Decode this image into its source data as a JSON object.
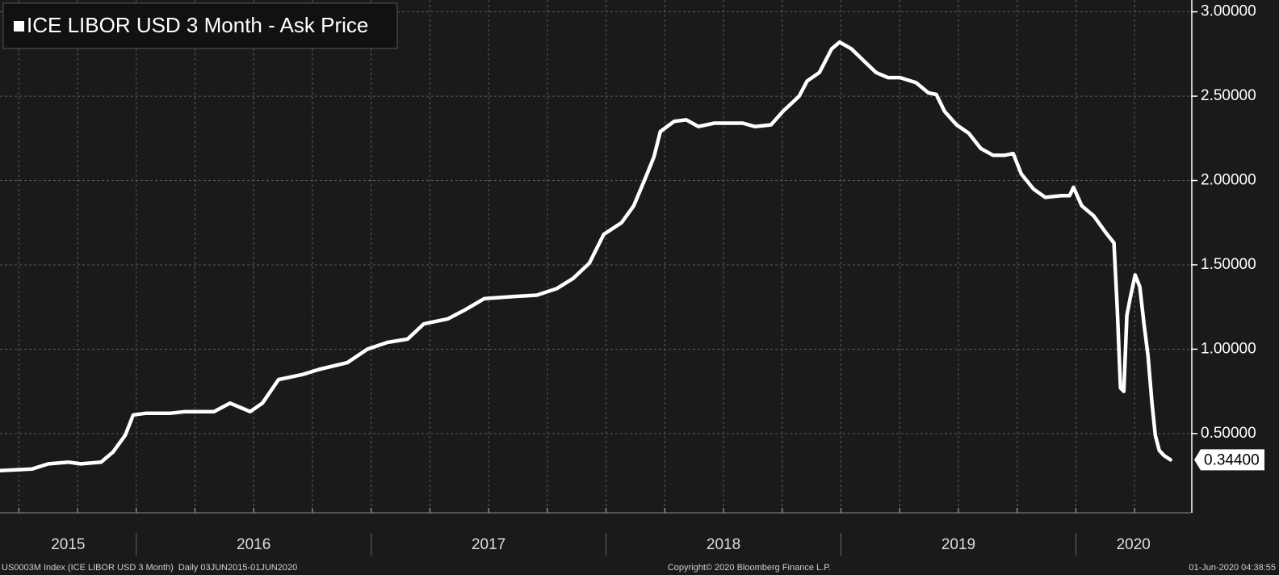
{
  "chart_data": {
    "type": "line",
    "series": [
      {
        "name": "ICE LIBOR USD 3 Month - Ask Price",
        "color": "#ffffff",
        "x": [
          2015.42,
          2015.557,
          2015.626,
          2015.712,
          2015.764,
          2015.85,
          2015.901,
          2015.953,
          2015.987,
          2016.039,
          2016.142,
          2016.21,
          2016.331,
          2016.399,
          2016.451,
          2016.485,
          2016.537,
          2016.606,
          2016.709,
          2016.777,
          2016.898,
          2016.984,
          2017.069,
          2017.155,
          2017.224,
          2017.327,
          2017.396,
          2017.482,
          2017.585,
          2017.705,
          2017.791,
          2017.86,
          2017.929,
          2017.99,
          2018.066,
          2018.118,
          2018.169,
          2018.204,
          2018.231,
          2018.289,
          2018.341,
          2018.393,
          2018.461,
          2018.582,
          2018.633,
          2018.702,
          2018.753,
          2018.822,
          2018.856,
          2018.908,
          2018.96,
          2018.994,
          2019.045,
          2019.097,
          2019.149,
          2019.2,
          2019.252,
          2019.32,
          2019.372,
          2019.406,
          2019.441,
          2019.492,
          2019.544,
          2019.595,
          2019.647,
          2019.698,
          2019.733,
          2019.767,
          2019.819,
          2019.87,
          2019.939,
          2019.973,
          2019.99,
          2020.025,
          2020.076,
          2020.128,
          2020.162,
          2020.176,
          2020.19,
          2020.204,
          2020.217,
          2020.231,
          2020.252,
          2020.272,
          2020.29,
          2020.307,
          2020.324,
          2020.338,
          2020.355,
          2020.375,
          2020.403
        ],
        "values": [
          0.28,
          0.29,
          0.32,
          0.33,
          0.32,
          0.33,
          0.39,
          0.49,
          0.61,
          0.62,
          0.62,
          0.63,
          0.63,
          0.68,
          0.65,
          0.63,
          0.68,
          0.82,
          0.85,
          0.88,
          0.92,
          1.0,
          1.04,
          1.06,
          1.15,
          1.18,
          1.23,
          1.3,
          1.31,
          1.32,
          1.36,
          1.42,
          1.51,
          1.68,
          1.75,
          1.85,
          2.02,
          2.14,
          2.29,
          2.35,
          2.36,
          2.32,
          2.34,
          2.34,
          2.32,
          2.33,
          2.41,
          2.5,
          2.59,
          2.64,
          2.78,
          2.82,
          2.78,
          2.71,
          2.64,
          2.61,
          2.61,
          2.58,
          2.52,
          2.51,
          2.41,
          2.33,
          2.28,
          2.19,
          2.15,
          2.15,
          2.16,
          2.04,
          1.95,
          1.9,
          1.91,
          1.91,
          1.96,
          1.85,
          1.79,
          1.69,
          1.63,
          1.25,
          0.77,
          0.75,
          1.2,
          1.3,
          1.44,
          1.37,
          1.15,
          0.96,
          0.68,
          0.49,
          0.4,
          0.37,
          0.344
        ]
      }
    ],
    "last_value": {
      "value": 0.344,
      "label": "0.34400"
    },
    "xlim": [
      2015.42,
      2020.49
    ],
    "xticks": [
      {
        "value": 2015,
        "label": "2015"
      },
      {
        "value": 2016,
        "label": "2016"
      },
      {
        "value": 2017,
        "label": "2017"
      },
      {
        "value": 2018,
        "label": "2018"
      },
      {
        "value": 2019,
        "label": "2019"
      },
      {
        "value": 2020,
        "label": "2020"
      }
    ],
    "ylim": [
      0.03,
      3.07
    ],
    "yticks": [
      {
        "value": 0.5,
        "label": "0.50000"
      },
      {
        "value": 1.0,
        "label": "1.00000"
      },
      {
        "value": 1.5,
        "label": "1.50000"
      },
      {
        "value": 2.0,
        "label": "2.00000"
      },
      {
        "value": 2.5,
        "label": "2.50000"
      },
      {
        "value": 3.0,
        "label": "3.00000"
      }
    ],
    "grid": true,
    "legend": "top-left",
    "footer_left": "US0003M Index (ICE LIBOR USD 3 Month)  Daily 03JUN2015-01JUN2020",
    "footer_center": "Copyright© 2020 Bloomberg Finance L.P.",
    "footer_right": "01-Jun-2020 04:38:55"
  }
}
